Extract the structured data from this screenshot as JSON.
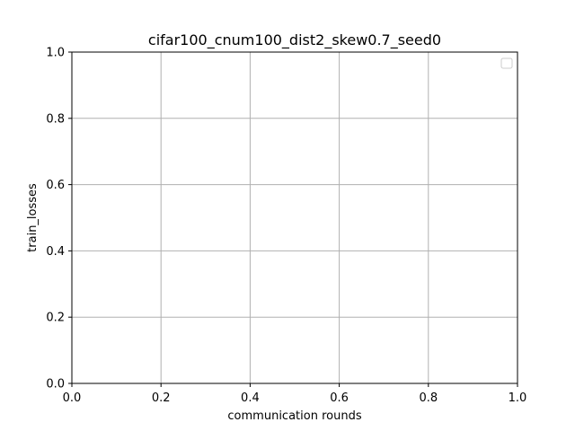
{
  "chart_data": {
    "type": "line",
    "title": "cifar100_cnum100_dist2_skew0.7_seed0",
    "xlabel": "communication rounds",
    "ylabel": "train_losses",
    "xlim": [
      0,
      1
    ],
    "ylim": [
      0,
      1
    ],
    "x_ticks": [
      "0.0",
      "0.2",
      "0.4",
      "0.6",
      "0.8",
      "1.0"
    ],
    "y_ticks": [
      "0.0",
      "0.2",
      "0.4",
      "0.6",
      "0.8",
      "1.0"
    ],
    "grid": true,
    "legend": {
      "location": "top-right",
      "entries": []
    },
    "series": []
  },
  "colors": {
    "grid": "#b0b0b0",
    "axes": "#000000",
    "background": "#ffffff",
    "legend_border": "#cccccc"
  }
}
